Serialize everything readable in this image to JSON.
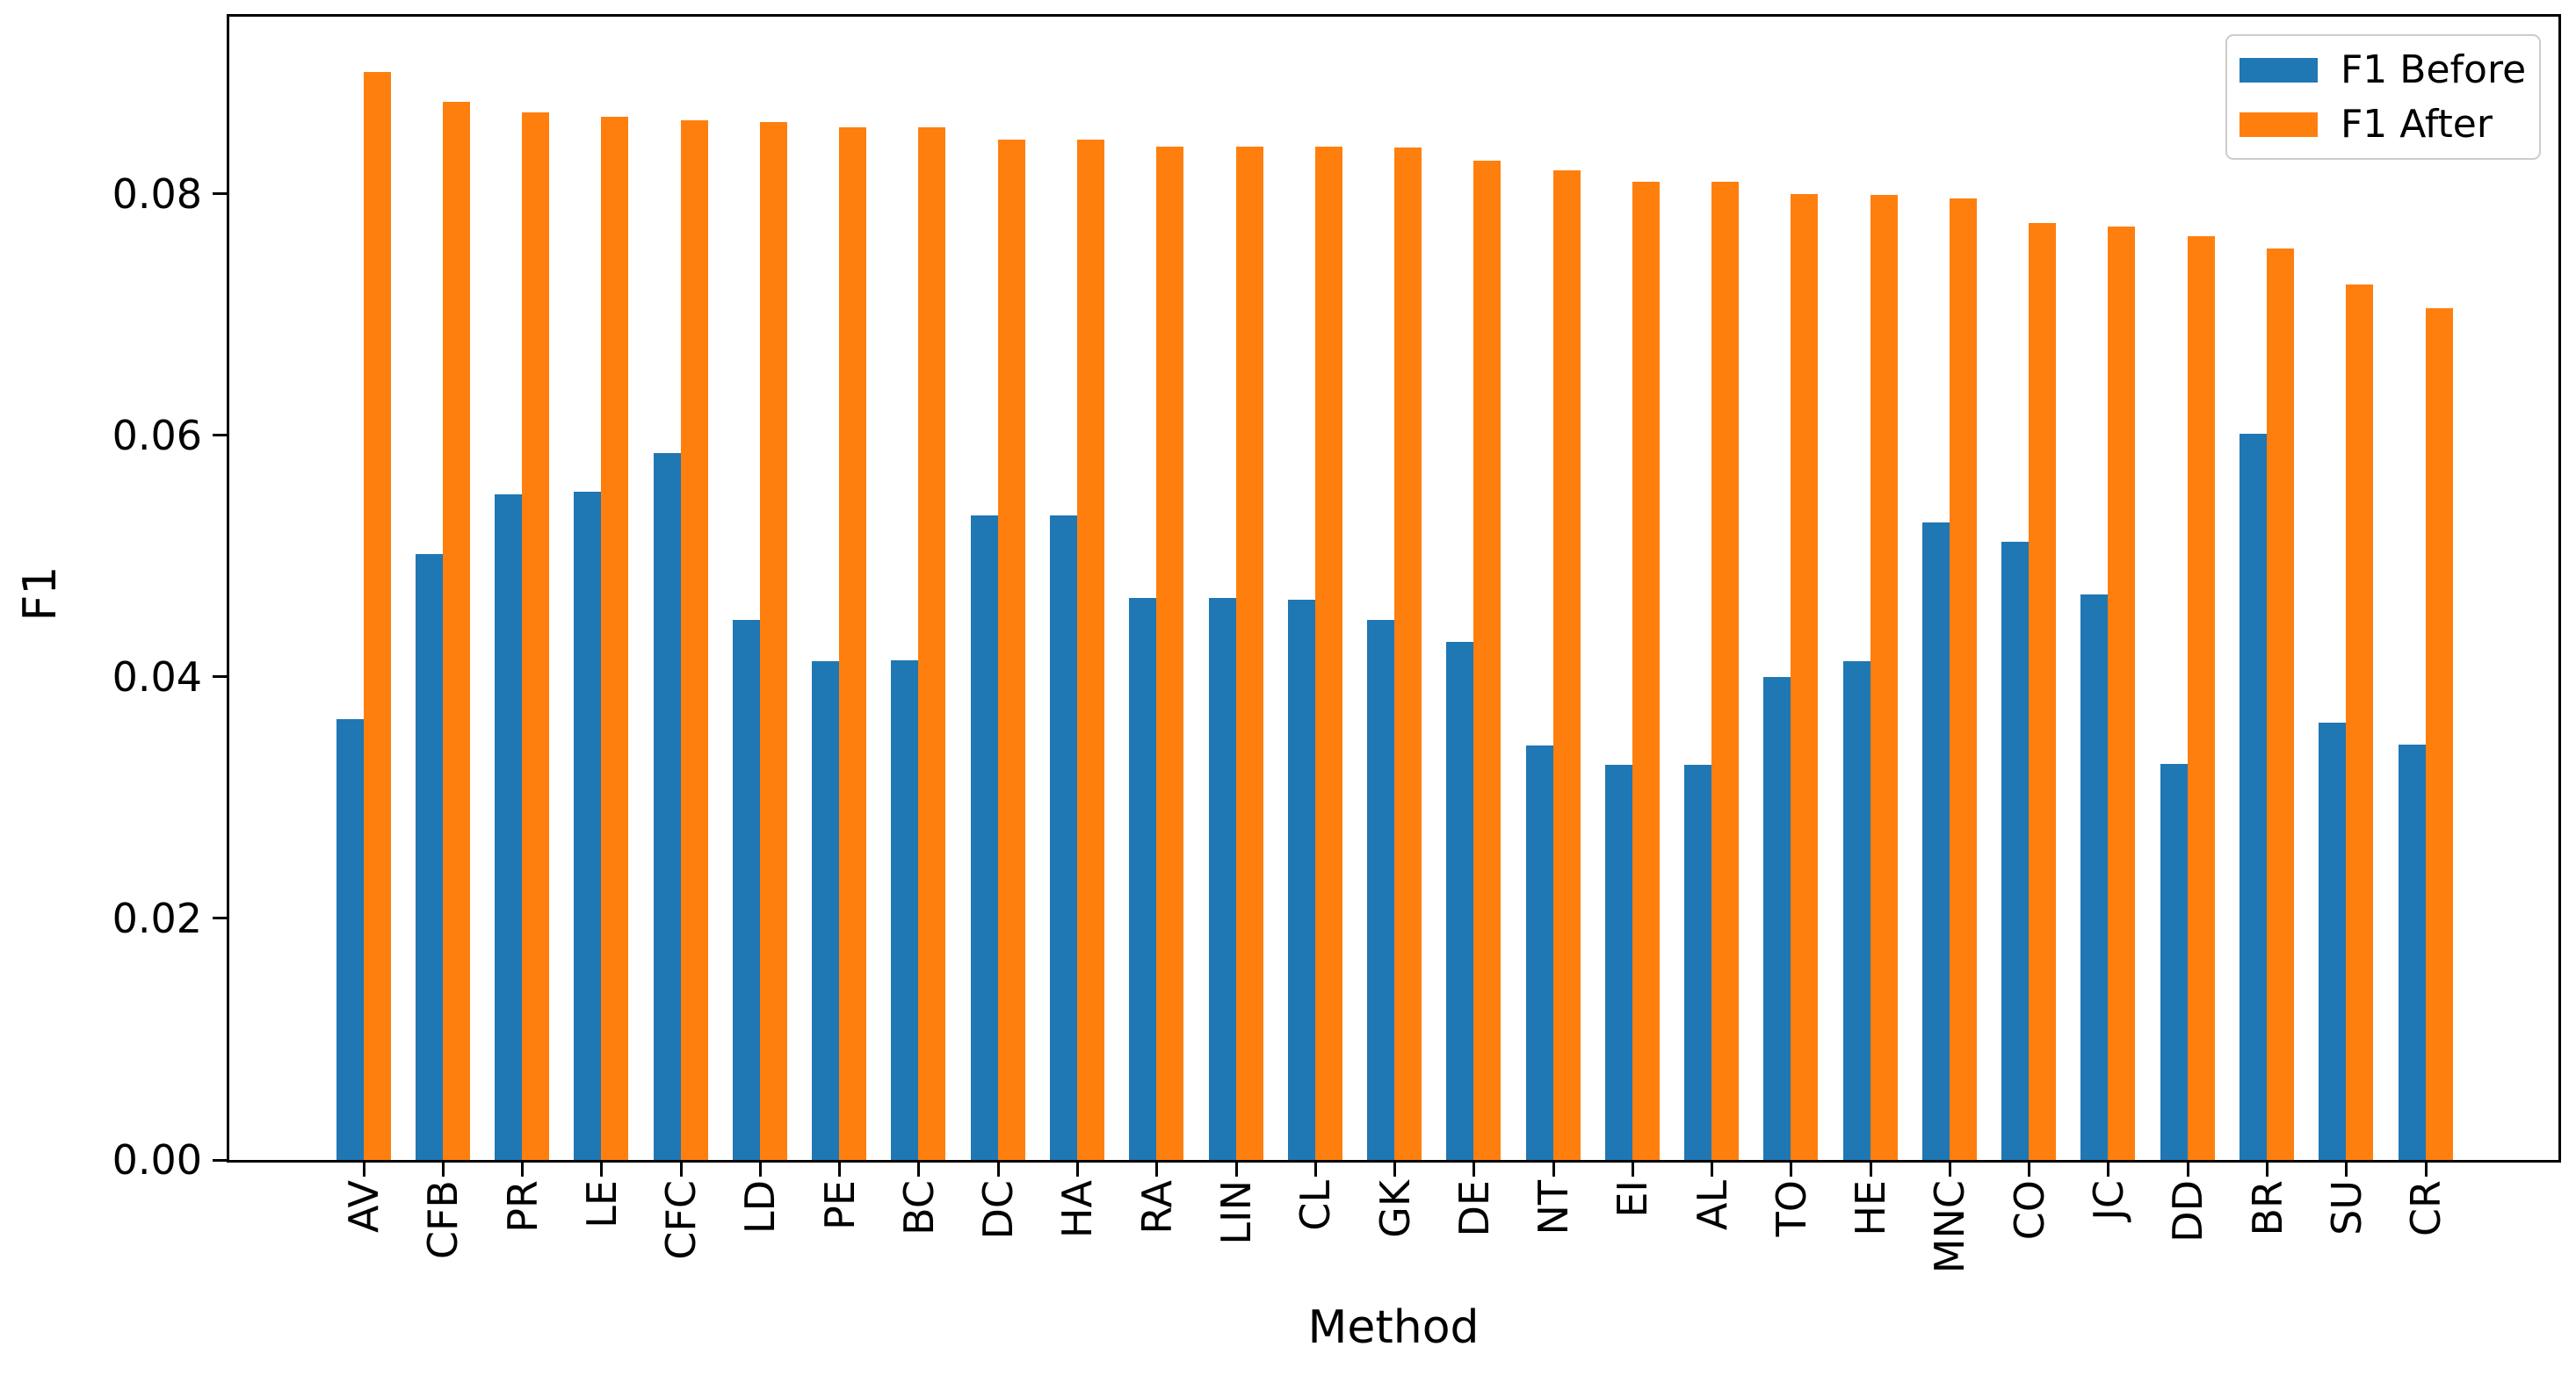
{
  "axes": {
    "ylabel": "F1",
    "xlabel": "Method",
    "y_tick_labels": [
      "0.00",
      "0.02",
      "0.04",
      "0.06",
      "0.08"
    ],
    "y_tick_values": [
      0,
      0.02,
      0.04,
      0.06,
      0.08
    ],
    "ylim": [
      0,
      0.0948
    ],
    "axis_color": "#000000",
    "background": "#ffffff"
  },
  "legend": {
    "position": "upper right",
    "border_color": "#cccccc",
    "entries": [
      {
        "label": "F1 Before",
        "color": "#1f77b4"
      },
      {
        "label": "F1 After",
        "color": "#ff7f0e"
      }
    ]
  },
  "chart_data": {
    "type": "bar",
    "title": "",
    "xlabel": "Method",
    "ylabel": "F1",
    "ylim": [
      0,
      0.0948
    ],
    "grid": false,
    "legend_position": "upper right",
    "categories": [
      "AV",
      "CFB",
      "PR",
      "LE",
      "CFC",
      "LD",
      "PE",
      "BC",
      "DC",
      "HA",
      "RA",
      "LIN",
      "CL",
      "GK",
      "DE",
      "NT",
      "EI",
      "AL",
      "TO",
      "HE",
      "MNC",
      "CO",
      "JC",
      "DD",
      "BR",
      "SU",
      "CR"
    ],
    "series": [
      {
        "name": "F1 Before",
        "color": "#1f77b4",
        "values": [
          0.0365,
          0.0502,
          0.0551,
          0.0553,
          0.0585,
          0.0447,
          0.0413,
          0.0414,
          0.0534,
          0.0534,
          0.0465,
          0.0465,
          0.0464,
          0.0447,
          0.0429,
          0.0343,
          0.0327,
          0.0327,
          0.04,
          0.0413,
          0.0528,
          0.0512,
          0.0468,
          0.0328,
          0.0601,
          0.0362,
          0.0344
        ]
      },
      {
        "name": "F1 After",
        "color": "#ff7f0e",
        "values": [
          0.0901,
          0.0876,
          0.0867,
          0.0864,
          0.0861,
          0.0859,
          0.0855,
          0.0855,
          0.0845,
          0.0845,
          0.0839,
          0.0839,
          0.0839,
          0.0838,
          0.0827,
          0.0819,
          0.081,
          0.081,
          0.08,
          0.0799,
          0.0796,
          0.0776,
          0.0773,
          0.0765,
          0.0755,
          0.0725,
          0.0705
        ]
      }
    ]
  }
}
